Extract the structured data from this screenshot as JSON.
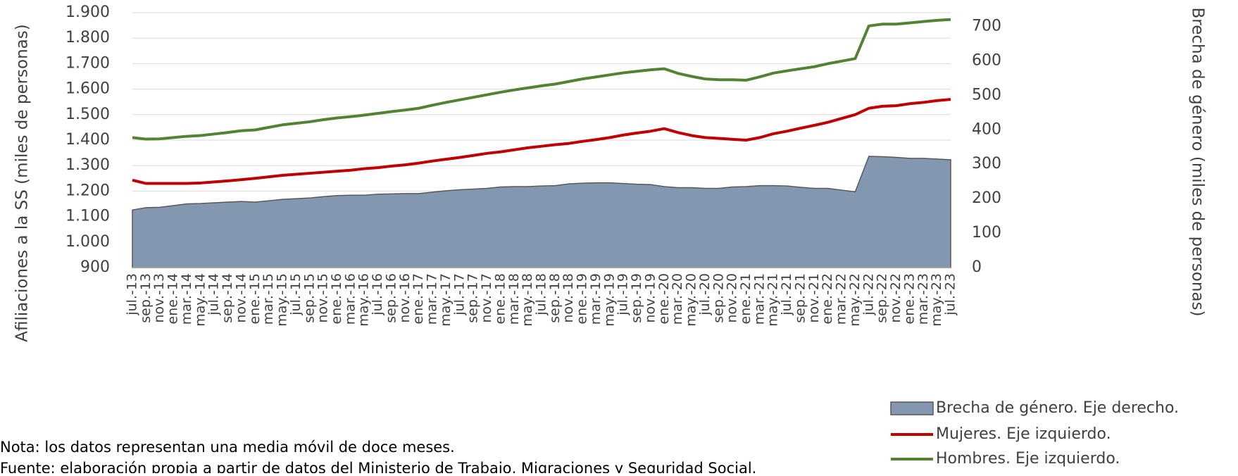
{
  "chart_data": {
    "type": "line",
    "ylabel": "Afiliaciones a la SS (miles de personas)",
    "y2label": "Brecha de género (miles de personas)",
    "categories": [
      "jul.-13",
      "sep.-13",
      "nov.-13",
      "ene.-14",
      "mar.-14",
      "may.-14",
      "jul.-14",
      "sep.-14",
      "nov.-14",
      "ene.-15",
      "mar.-15",
      "may.-15",
      "jul.-15",
      "sep.-15",
      "nov.-15",
      "ene.-16",
      "mar.-16",
      "may.-16",
      "jul.-16",
      "sep.-16",
      "nov.-16",
      "ene.-17",
      "mar.-17",
      "may.-17",
      "jul.-17",
      "sep.-17",
      "nov.-17",
      "ene.-18",
      "mar.-18",
      "may.-18",
      "jul.-18",
      "sep.-18",
      "nov.-18",
      "ene.-19",
      "mar.-19",
      "may.-19",
      "jul.-19",
      "sep.-19",
      "nov.-19",
      "ene.-20",
      "mar.-20",
      "may.-20",
      "jul.-20",
      "sep.-20",
      "nov.-20",
      "ene.-21",
      "mar.-21",
      "may.-21",
      "jul.-21",
      "sep.-21",
      "nov.-21",
      "ene.-22",
      "mar.-22",
      "may.-22",
      "jul.-22",
      "sep.-22",
      "nov.-22",
      "ene.-23",
      "mar.-23",
      "may.-23",
      "jul.-23"
    ],
    "series": [
      {
        "name": "Brecha de género. Eje derecho.",
        "type": "area",
        "axis": "y2",
        "color": "#8497b0",
        "values": [
          167,
          174,
          175,
          180,
          185,
          186,
          188,
          190,
          192,
          190,
          194,
          198,
          200,
          202,
          206,
          209,
          210,
          210,
          213,
          214,
          215,
          215,
          219,
          223,
          226,
          228,
          230,
          234,
          235,
          235,
          237,
          238,
          243,
          245,
          246,
          246,
          244,
          242,
          241,
          235,
          232,
          232,
          230,
          230,
          234,
          235,
          238,
          238,
          237,
          233,
          230,
          230,
          225,
          220,
          323,
          322,
          320,
          317,
          317,
          315,
          313
        ]
      },
      {
        "name": "Mujeres. Eje izquierdo.",
        "type": "line",
        "color": "#c00000",
        "values": [
          1243,
          1230,
          1230,
          1230,
          1230,
          1232,
          1236,
          1240,
          1245,
          1250,
          1256,
          1262,
          1266,
          1270,
          1274,
          1278,
          1282,
          1288,
          1292,
          1298,
          1303,
          1310,
          1318,
          1325,
          1332,
          1340,
          1348,
          1354,
          1362,
          1370,
          1376,
          1382,
          1387,
          1395,
          1402,
          1410,
          1420,
          1428,
          1435,
          1445,
          1430,
          1418,
          1410,
          1407,
          1403,
          1400,
          1410,
          1425,
          1435,
          1447,
          1458,
          1470,
          1485,
          1500,
          1525,
          1533,
          1535,
          1543,
          1548,
          1555,
          1560
        ]
      },
      {
        "name": "Hombres. Eje izquierdo.",
        "type": "line",
        "color": "#548235",
        "values": [
          1410,
          1404,
          1405,
          1410,
          1415,
          1418,
          1424,
          1430,
          1437,
          1440,
          1450,
          1460,
          1466,
          1472,
          1480,
          1487,
          1492,
          1498,
          1505,
          1512,
          1518,
          1525,
          1537,
          1548,
          1558,
          1568,
          1578,
          1588,
          1597,
          1605,
          1613,
          1620,
          1630,
          1640,
          1648,
          1656,
          1664,
          1670,
          1676,
          1680,
          1662,
          1650,
          1640,
          1637,
          1637,
          1635,
          1648,
          1663,
          1672,
          1680,
          1688,
          1700,
          1710,
          1720,
          1848,
          1855,
          1855,
          1860,
          1865,
          1870,
          1873
        ]
      }
    ],
    "ylim": [
      900,
      1900
    ],
    "yticks": [
      {
        "value": 900,
        "label": "900"
      },
      {
        "value": 1000,
        "label": "1.000"
      },
      {
        "value": 1100,
        "label": "1.100"
      },
      {
        "value": 1200,
        "label": "1.200"
      },
      {
        "value": 1300,
        "label": "1.300"
      },
      {
        "value": 1400,
        "label": "1.400"
      },
      {
        "value": 1500,
        "label": "1.500"
      },
      {
        "value": 1600,
        "label": "1.600"
      },
      {
        "value": 1700,
        "label": "1.700"
      },
      {
        "value": 1800,
        "label": "1.800"
      },
      {
        "value": 1900,
        "label": "1.900"
      }
    ],
    "y2lim": [
      0,
      740
    ],
    "y2ticks": [
      0,
      100,
      200,
      300,
      400,
      500,
      600,
      700
    ],
    "grid": true,
    "legend": "bottom-right",
    "notes": [
      "Nota: los datos representan una media móvil de doce meses.",
      "Fuente: elaboración propia a partir de datos del Ministerio de Trabajo, Migraciones y Seguridad Social."
    ]
  }
}
